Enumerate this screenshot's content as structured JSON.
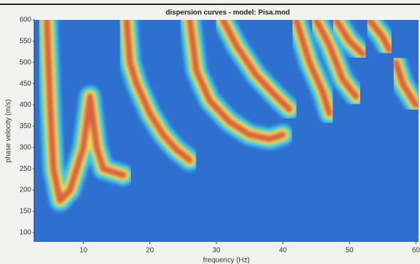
{
  "chart_data": {
    "type": "ridge",
    "title": "dispersion curves - model: Pisa.mod",
    "x_label": "frequency (Hz)",
    "y_label": "phase velocity (m/s)",
    "xlim": [
      2.6,
      60.4
    ],
    "ylim": [
      78,
      600
    ],
    "xticks": [
      10,
      20,
      30,
      40,
      50,
      60
    ],
    "yticks": [
      100,
      150,
      200,
      250,
      300,
      350,
      400,
      450,
      500,
      550,
      600
    ],
    "background_color": "#2f6fd0",
    "band_colors": [
      "#3cc4e6",
      "#f0e45a",
      "#d9603f"
    ],
    "series": [
      {
        "x": [
          4.5,
          5,
          5.5,
          6.5,
          8,
          10,
          11,
          12,
          13,
          15,
          16
        ],
        "values": [
          600,
          400,
          250,
          175,
          200,
          300,
          420,
          300,
          250,
          240,
          235
        ]
      },
      {
        "x": [
          16.5,
          17,
          18,
          20,
          22,
          24,
          26
        ],
        "values": [
          600,
          500,
          450,
          380,
          330,
          295,
          270
        ]
      },
      {
        "x": [
          26,
          27,
          29,
          32,
          35,
          38,
          40
        ],
        "values": [
          600,
          480,
          410,
          360,
          330,
          320,
          330
        ]
      },
      {
        "x": [
          31,
          33,
          36,
          39,
          41
        ],
        "values": [
          600,
          540,
          470,
          420,
          390
        ]
      },
      {
        "x": [
          42,
          44,
          46,
          47
        ],
        "values": [
          600,
          500,
          430,
          380
        ]
      },
      {
        "x": [
          45,
          47,
          49,
          51
        ],
        "values": [
          600,
          540,
          460,
          420
        ]
      },
      {
        "x": [
          48,
          50,
          52
        ],
        "values": [
          600,
          550,
          520
        ]
      },
      {
        "x": [
          53,
          55,
          56
        ],
        "values": [
          600,
          560,
          530
        ]
      },
      {
        "x": [
          57,
          58,
          60
        ],
        "values": [
          500,
          450,
          400
        ]
      }
    ]
  }
}
